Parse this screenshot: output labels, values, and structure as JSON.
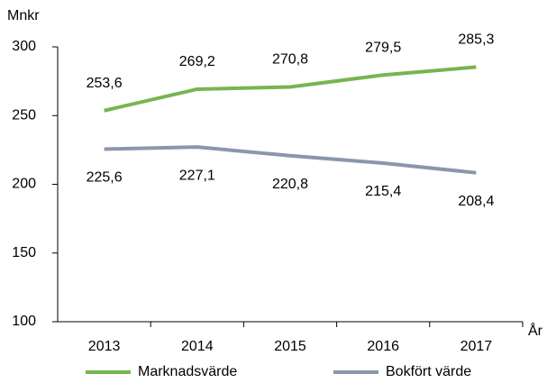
{
  "chart_data": {
    "type": "line",
    "y_label": "Mnkr",
    "x_label": "År",
    "categories": [
      "2013",
      "2014",
      "2015",
      "2016",
      "2017"
    ],
    "series": [
      {
        "name": "Marknadsvärde",
        "color": "#77b550",
        "values": [
          253.6,
          269.2,
          270.8,
          279.5,
          285.3
        ],
        "value_labels": [
          "253,6",
          "269,2",
          "270,8",
          "279,5",
          "285,3"
        ]
      },
      {
        "name": "Bokfört värde",
        "color": "#8c96ab",
        "values": [
          225.6,
          227.1,
          220.8,
          215.4,
          208.4
        ],
        "value_labels": [
          "225,6",
          "227,1",
          "220,8",
          "215,4",
          "208,4"
        ]
      }
    ],
    "ylim": [
      100,
      300
    ],
    "yticks": [
      100,
      150,
      200,
      250,
      300
    ],
    "grid": false,
    "legend": "bottom"
  }
}
